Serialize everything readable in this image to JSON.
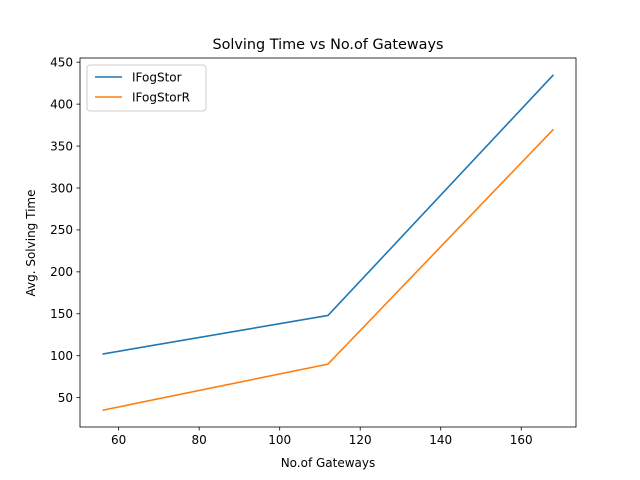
{
  "chart_data": {
    "type": "line",
    "title": "Solving Time vs No.of Gateways",
    "xlabel": "No.of Gateways",
    "ylabel": "Avg. Solving Time",
    "xlim": [
      50.4,
      173.6
    ],
    "ylim": [
      15,
      455
    ],
    "xticks": [
      60,
      80,
      100,
      120,
      140,
      160
    ],
    "yticks": [
      50,
      100,
      150,
      200,
      250,
      300,
      350,
      400,
      450
    ],
    "grid": false,
    "legend_position": "upper-left",
    "series": [
      {
        "name": "IFogStor",
        "color": "#1f77b4",
        "x": [
          56,
          112,
          168
        ],
        "y": [
          102,
          148,
          435
        ]
      },
      {
        "name": "IFogStorR",
        "color": "#ff7f0e",
        "x": [
          56,
          112,
          168
        ],
        "y": [
          35,
          90,
          370
        ]
      }
    ]
  }
}
